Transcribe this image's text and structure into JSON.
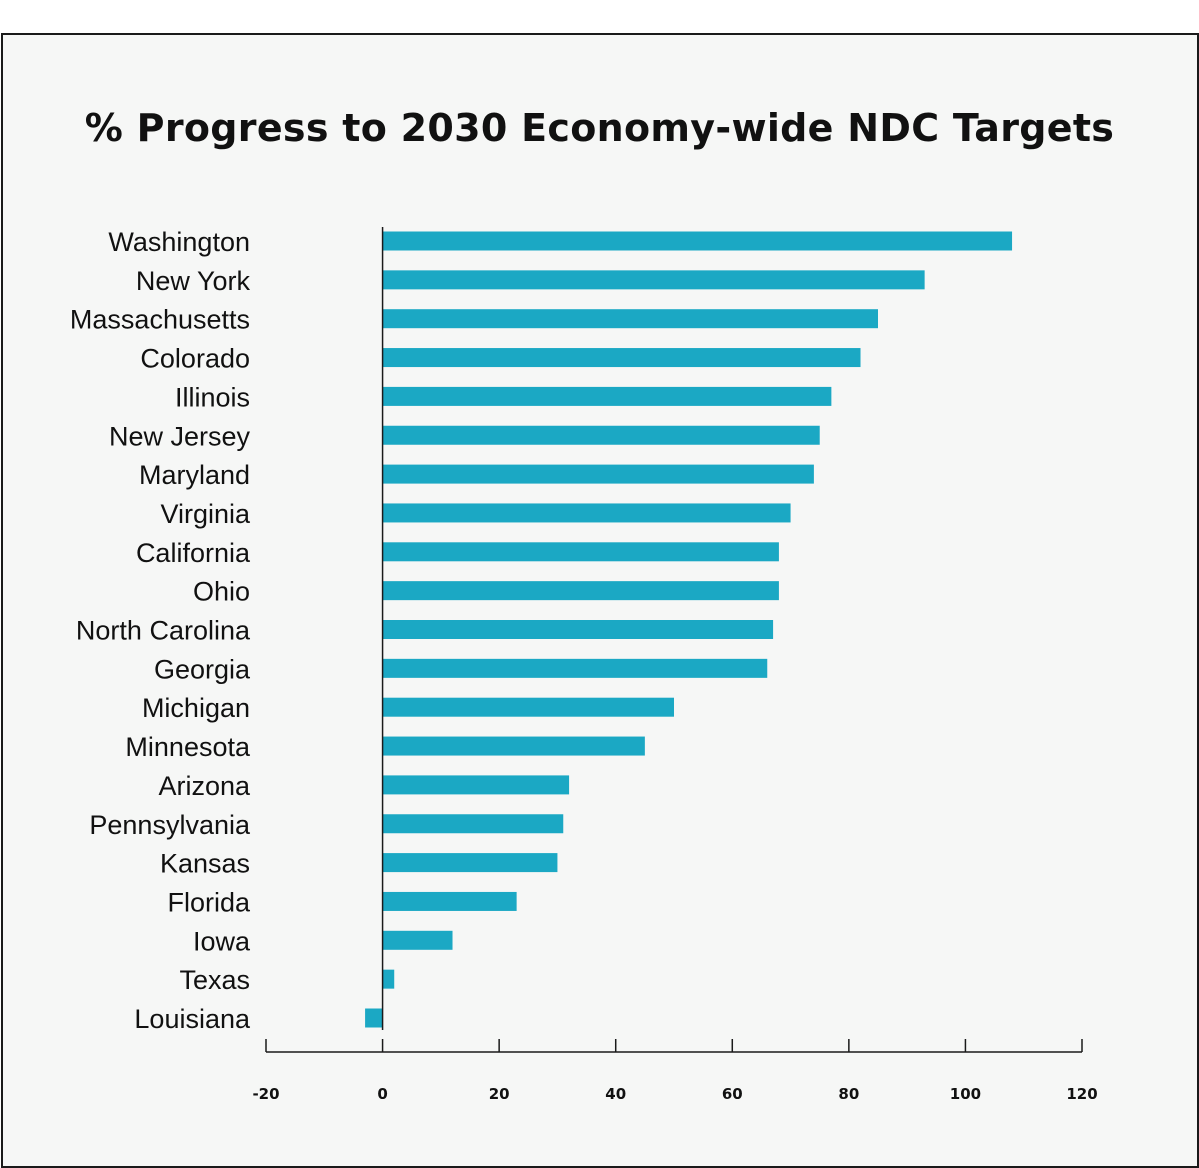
{
  "chart_data": {
    "type": "bar",
    "orientation": "horizontal",
    "title": "% Progress to 2030 Economy-wide NDC Targets",
    "xlabel": "",
    "ylabel": "",
    "categories": [
      "Washington",
      "New York",
      "Massachusetts",
      "Colorado",
      "Illinois",
      "New Jersey",
      "Maryland",
      "Virginia",
      "California",
      "Ohio",
      "North Carolina",
      "Georgia",
      "Michigan",
      "Minnesota",
      "Arizona",
      "Pennsylvania",
      "Kansas",
      "Florida",
      "Iowa",
      "Texas",
      "Louisiana"
    ],
    "values": [
      108,
      93,
      85,
      82,
      77,
      75,
      74,
      70,
      68,
      68,
      67,
      66,
      50,
      45,
      32,
      31,
      30,
      23,
      12,
      2,
      -3
    ],
    "xlim": [
      -20,
      120
    ],
    "xticks": [
      "-20",
      "0",
      "20",
      "40",
      "60",
      "80",
      "100",
      "120"
    ],
    "grid": false,
    "legend": "none",
    "bar_color": "#1ba8c4"
  }
}
